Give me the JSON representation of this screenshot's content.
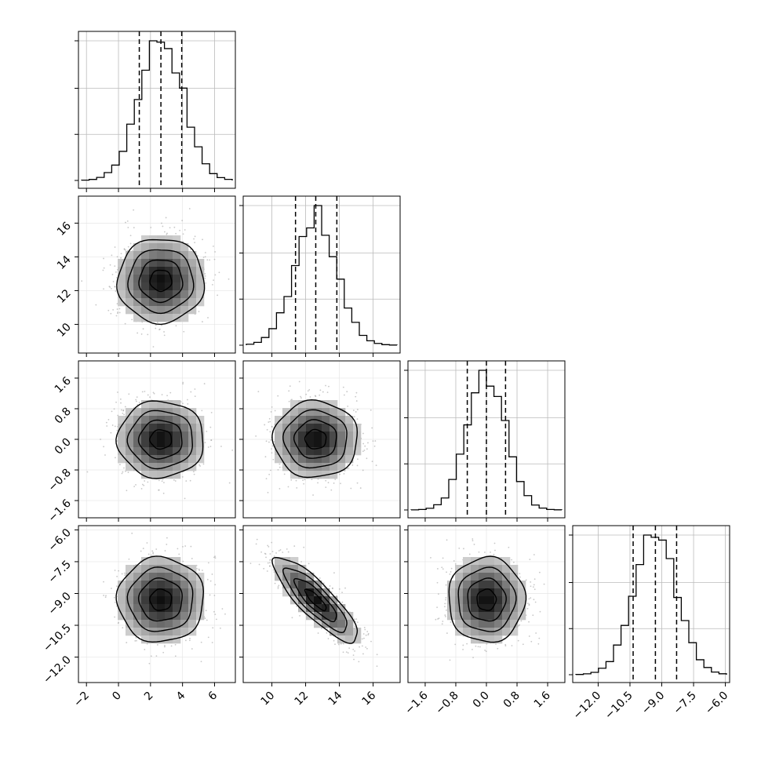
{
  "chart_data": {
    "type": "corner",
    "parameters": [
      {
        "ticks": [
          -2,
          0,
          2,
          4,
          6
        ],
        "tick_labels": [
          "−2",
          "0",
          "2",
          "4",
          "6"
        ],
        "range": [
          -2.5,
          7.3
        ],
        "quantiles": [
          1.3,
          2.65,
          3.95
        ],
        "mean": 2.65,
        "sd": 1.35,
        "hist_ylabels_visible": false
      },
      {
        "ticks": [
          10,
          12,
          14,
          16
        ],
        "tick_labels": [
          "10",
          "12",
          "14",
          "16"
        ],
        "range": [
          8.3,
          17.6
        ],
        "quantiles": [
          11.4,
          12.6,
          13.85
        ],
        "mean": 12.6,
        "sd": 1.25
      },
      {
        "ticks": [
          -1.6,
          -0.8,
          0.0,
          0.8,
          1.6
        ],
        "tick_labels": [
          "−1.6",
          "−0.8",
          "0.0",
          "0.8",
          "1.6"
        ],
        "range": [
          -2.05,
          2.05
        ],
        "quantiles": [
          -0.5,
          0.0,
          0.5
        ],
        "mean": 0.0,
        "sd": 0.5
      },
      {
        "ticks": [
          -12.0,
          -10.5,
          -9.0,
          -7.5,
          -6.0
        ],
        "tick_labels": [
          "−12.0",
          "−10.5",
          "−9.0",
          "−7.5",
          "−6.0"
        ],
        "range": [
          -13.2,
          -5.8
        ],
        "quantiles": [
          -10.35,
          -9.3,
          -8.3
        ],
        "mean": -9.3,
        "sd": 1.0
      }
    ],
    "correlations": [
      [
        1,
        0,
        0,
        0
      ],
      [
        0,
        1,
        0,
        -0.85
      ],
      [
        0,
        0,
        1,
        0
      ],
      [
        0,
        -0.85,
        0,
        1
      ]
    ],
    "contour_levels_sigma": [
      0.5,
      1.0,
      1.5,
      2.0
    ],
    "grid": true,
    "line_color": "#000000",
    "point_color": "#9a9a9a"
  }
}
